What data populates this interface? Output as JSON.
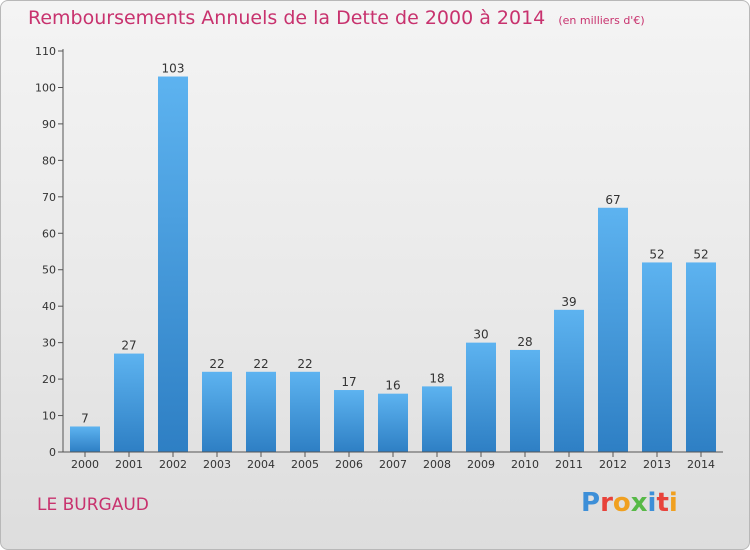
{
  "chart_data": {
    "type": "bar",
    "title": "Remboursements Annuels de la Dette de 2000 à 2014",
    "unit_label": "(en milliers d'€)",
    "categories": [
      "2000",
      "2001",
      "2002",
      "2003",
      "2004",
      "2005",
      "2006",
      "2007",
      "2008",
      "2009",
      "2010",
      "2011",
      "2012",
      "2013",
      "2014"
    ],
    "values": [
      7,
      27,
      103,
      22,
      22,
      22,
      17,
      16,
      18,
      30,
      28,
      39,
      67,
      52,
      52
    ],
    "ylim": [
      0,
      110
    ],
    "yticks": [
      0,
      10,
      20,
      30,
      40,
      50,
      60,
      70,
      80,
      90,
      100,
      110
    ],
    "xlabel": "",
    "ylabel": "",
    "grid": false,
    "bar_color": "#4a9fe0",
    "title_color": "#c8326e"
  },
  "place": {
    "name": "LE BURGAUD"
  },
  "logo": {
    "text": "Proxiti",
    "letter_colors": [
      "#3d8fd8",
      "#e8423a",
      "#f0a020",
      "#57b947",
      "#3d8fd8",
      "#e8423a",
      "#f0a020"
    ]
  }
}
